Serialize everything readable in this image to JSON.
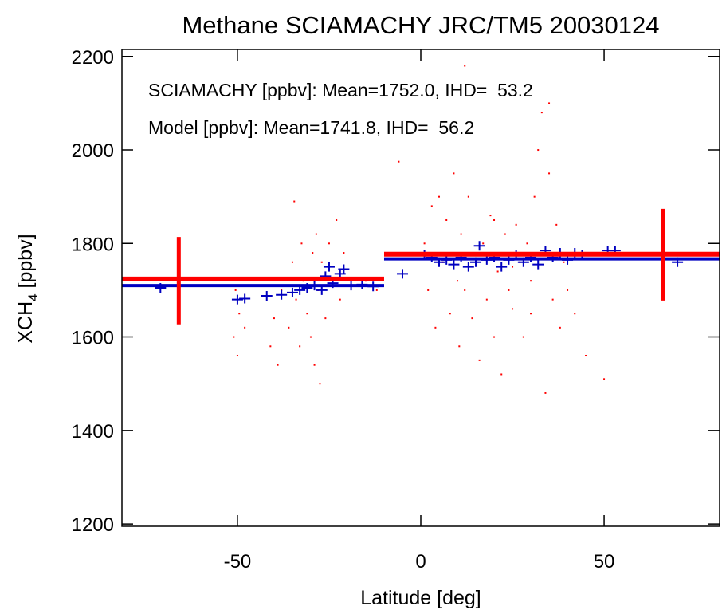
{
  "chart_data": {
    "type": "scatter",
    "title": "Methane SCIAMACHY JRC/TM5 20030124",
    "xlabel": "Latitude [deg]",
    "ylabel": {
      "main": "XCH",
      "sub": "4",
      "rest": " [ppbv]"
    },
    "xlim": [
      -81.5,
      81.5
    ],
    "ylim": [
      1195,
      2215
    ],
    "xticks": [
      -50,
      0,
      50
    ],
    "yticks": [
      1200,
      1400,
      1600,
      1800,
      2000,
      2200
    ],
    "annotations": [
      {
        "text": "SCIAMACHY [ppbv]: Mean=1752.0, IHD=  53.2",
        "color": "#ff0000"
      },
      {
        "text": "Model [ppbv]: Mean=1741.8, IHD=  56.2",
        "color": "#0000c0"
      }
    ],
    "series": [
      {
        "marker": "dot",
        "color": "#ff0000",
        "x": [
          -51,
          -50,
          -49.5,
          -50.5,
          -48,
          -41,
          -40,
          -39,
          -38,
          -36,
          -35,
          -34.5,
          -34,
          -33,
          -32.5,
          -32,
          -31,
          -30,
          -29.5,
          -29,
          -28.5,
          -28,
          -27.5,
          -27,
          -26,
          -25,
          -24,
          -23,
          -22,
          -21,
          -20,
          -15,
          -12,
          1,
          2,
          3,
          4,
          5,
          6,
          7,
          8,
          9,
          10,
          10.5,
          11,
          12,
          13,
          14,
          15,
          16,
          17,
          18,
          19,
          20,
          21,
          22,
          23,
          24,
          25,
          26,
          27,
          28,
          29,
          30,
          31,
          32,
          33,
          34,
          35,
          36,
          37,
          38,
          39,
          40,
          42,
          45,
          50,
          -6,
          12,
          20,
          25,
          30,
          35
        ],
        "values": [
          1600,
          1560,
          1650,
          1700,
          1620,
          1580,
          1640,
          1540,
          1700,
          1620,
          1760,
          1890,
          1680,
          1580,
          1800,
          1720,
          1650,
          1600,
          1780,
          1540,
          1820,
          1700,
          1500,
          1760,
          1640,
          1800,
          1720,
          1850,
          1680,
          1780,
          1710,
          1720,
          1700,
          1800,
          1700,
          1880,
          1620,
          1900,
          1760,
          1850,
          1650,
          1950,
          1720,
          1580,
          1820,
          1700,
          1900,
          1640,
          1760,
          1550,
          1800,
          1680,
          1860,
          1600,
          1740,
          1520,
          1820,
          1700,
          1660,
          1840,
          1760,
          1600,
          1800,
          1720,
          1900,
          2000,
          2080,
          1480,
          1950,
          1680,
          1840,
          1620,
          1760,
          1700,
          1650,
          1560,
          1510,
          1975,
          2180,
          1850,
          1750,
          1650,
          2100
        ]
      },
      {
        "marker": "plus",
        "color": "#0000c0",
        "x": [
          -71,
          -50,
          -48,
          -42,
          -38,
          -35,
          -33,
          -31,
          -29,
          -27,
          -26,
          -25,
          -24,
          -22,
          -21,
          -19,
          -16,
          -13,
          -5,
          1,
          3,
          5,
          7,
          9,
          11,
          13,
          15,
          16,
          18,
          20,
          22,
          24,
          26,
          28,
          30,
          32,
          34,
          36,
          38,
          40,
          42,
          44,
          51,
          53,
          70
        ],
        "values": [
          1705,
          1680,
          1682,
          1688,
          1690,
          1695,
          1700,
          1705,
          1710,
          1700,
          1730,
          1750,
          1715,
          1735,
          1745,
          1710,
          1712,
          1708,
          1735,
          1775,
          1770,
          1760,
          1765,
          1755,
          1770,
          1750,
          1760,
          1795,
          1765,
          1770,
          1750,
          1765,
          1775,
          1760,
          1770,
          1755,
          1785,
          1770,
          1780,
          1765,
          1780,
          1775,
          1785,
          1785,
          1760
        ]
      }
    ],
    "means": [
      {
        "color": "#0000c0",
        "width": 4,
        "segments": [
          {
            "x": [
              -81.5,
              -10
            ],
            "value": 1710
          },
          {
            "x": [
              -10,
              81.5
            ],
            "value": 1767
          }
        ]
      },
      {
        "color": "#ff0000",
        "width": 6,
        "segments": [
          {
            "x": [
              -81.5,
              -10
            ],
            "value": 1724
          },
          {
            "x": [
              -10,
              81.5
            ],
            "value": 1777
          }
        ]
      }
    ],
    "error_bars": {
      "color": "#ff0000",
      "items": [
        {
          "x": -66,
          "low": 1627,
          "high": 1814
        },
        {
          "x": 66,
          "low": 1678,
          "high": 1874
        }
      ]
    }
  }
}
